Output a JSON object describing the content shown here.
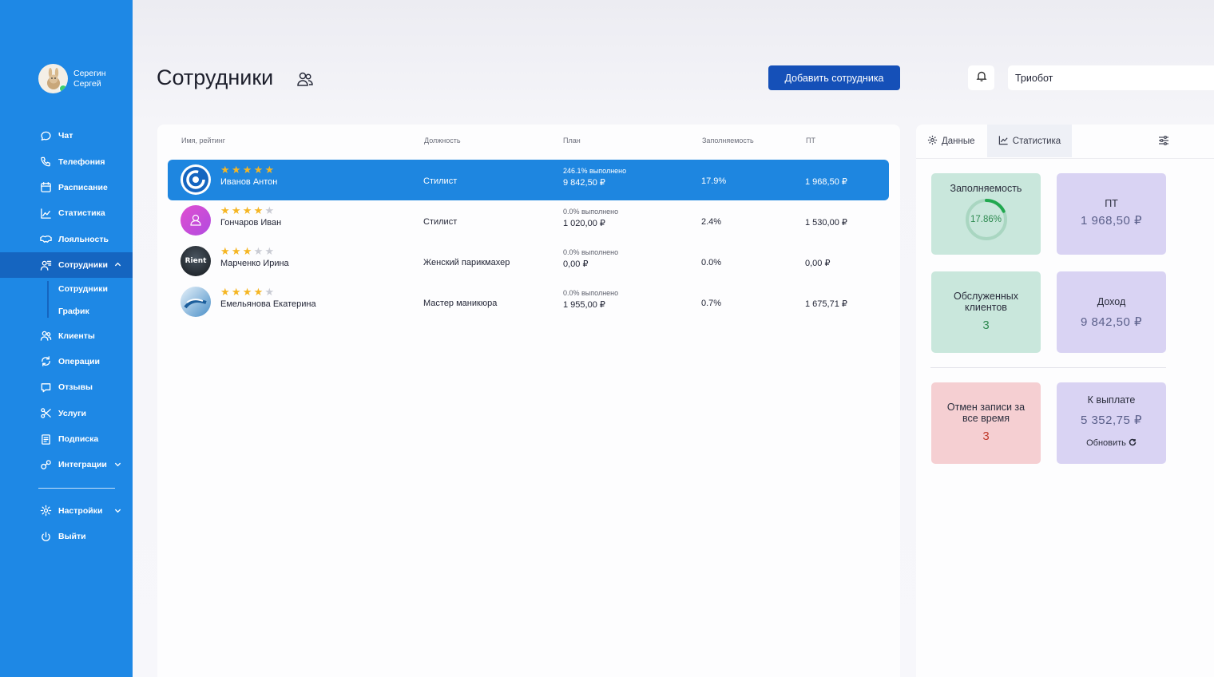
{
  "sidebar": {
    "user": {
      "last_name": "Серегин",
      "first_name": "Сергей"
    },
    "items": [
      {
        "label": "Чат",
        "icon": "chat-icon"
      },
      {
        "label": "Телефония",
        "icon": "phone-icon"
      },
      {
        "label": "Расписание",
        "icon": "calendar-icon"
      },
      {
        "label": "Статистика",
        "icon": "chart-icon"
      },
      {
        "label": "Лояльность",
        "icon": "handshake-icon"
      },
      {
        "label": "Сотрудники",
        "icon": "employees-icon",
        "active": true,
        "expanded": true
      },
      {
        "label": "Клиенты",
        "icon": "clients-icon"
      },
      {
        "label": "Операции",
        "icon": "operations-icon"
      },
      {
        "label": "Отзывы",
        "icon": "reviews-icon"
      },
      {
        "label": "Услуги",
        "icon": "services-icon"
      },
      {
        "label": "Подписка",
        "icon": "subscription-icon"
      },
      {
        "label": "Интеграции",
        "icon": "integrations-icon",
        "has_dropdown": true
      },
      {
        "label": "Настройки",
        "icon": "settings-icon",
        "has_dropdown": true
      },
      {
        "label": "Выйти",
        "icon": "power-icon"
      }
    ],
    "sub_items": [
      "Сотрудники",
      "График"
    ]
  },
  "header": {
    "title": "Сотрудники",
    "add_button": "Добавить сотрудника",
    "company": "Триобот"
  },
  "table": {
    "columns": [
      "Имя, рейтинг",
      "Должность",
      "План",
      "Заполняемость",
      "ПТ"
    ],
    "rows": [
      {
        "name": "Иванов Антон",
        "rating": 5,
        "position": "Стилист",
        "plan_status": "246.1% выполнено",
        "plan_amount": "9 842,50 ₽",
        "fill": "17.9%",
        "pt": "1 968,50 ₽",
        "selected": true
      },
      {
        "name": "Гончаров Иван",
        "rating": 4,
        "position": "Стилист",
        "plan_status": "0.0% выполнено",
        "plan_amount": "1 020,00 ₽",
        "fill": "2.4%",
        "pt": "1 530,00 ₽"
      },
      {
        "name": "Марченко Ирина",
        "rating": 3,
        "position": "Женский парикмахер",
        "plan_status": "0.0% выполнено",
        "plan_amount": "0,00 ₽",
        "fill": "0.0%",
        "pt": "0,00 ₽",
        "avatar_text": "Rient"
      },
      {
        "name": "Емельянова Екатерина",
        "rating": 4,
        "position": "Мастер маникюра",
        "plan_status": "0.0% выполнено",
        "plan_amount": "1 955,00 ₽",
        "fill": "0.7%",
        "pt": "1 675,71 ₽"
      }
    ]
  },
  "panel": {
    "tabs": [
      {
        "label": "Данные",
        "icon": "gear-icon"
      },
      {
        "label": "Статистика",
        "icon": "chart-icon",
        "active": true
      }
    ],
    "stats": {
      "fill_label": "Заполняемость",
      "fill_value": "17.86%",
      "fill_fraction": 0.1786,
      "pt_label": "ПТ",
      "pt_value": "1 968,50 ₽",
      "served_label": "Обслуженных клиентов",
      "served_value": "3",
      "income_label": "Доход",
      "income_value": "9 842,50 ₽",
      "cancel_label": "Отмен записи за все время",
      "cancel_value": "3",
      "payout_label": "К выплате",
      "payout_value": "5 352,75 ₽",
      "refresh_label": "Обновить"
    }
  },
  "colors": {
    "sidebar": "#1e88e5",
    "sidebar_active": "#1565c0",
    "primary_button": "#1550b8",
    "star": "#f5b623",
    "tile_green": "#c9e7dc",
    "tile_purple": "#d9d3f3",
    "tile_pink": "#f5cfd2"
  }
}
